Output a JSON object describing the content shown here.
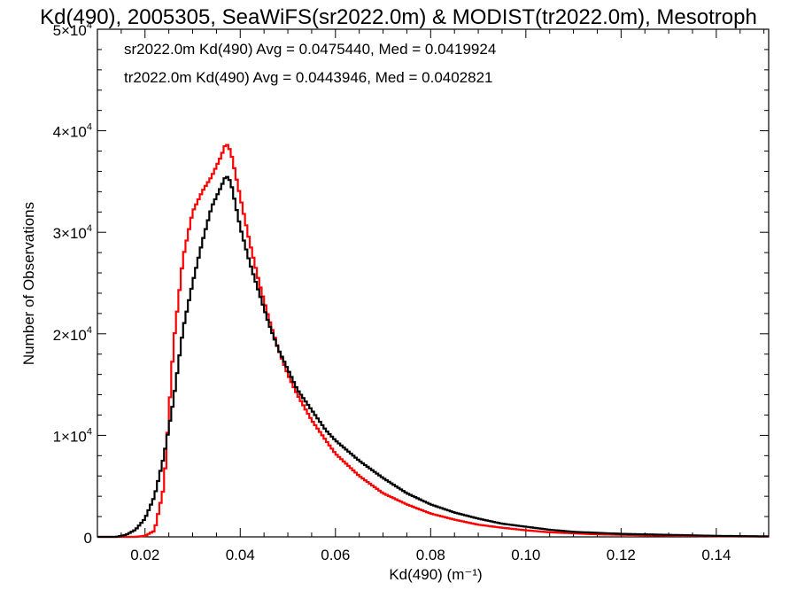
{
  "chart_data": {
    "type": "step-histogram",
    "title": "Kd(490), 2005305, SeaWiFS(sr2022.0m) & MODIST(tr2022.0m), Mesotroph",
    "xlabel": "Kd(490) (m⁻¹)",
    "ylabel": "Number of Observations",
    "xlim": [
      0.01,
      0.151
    ],
    "ylim": [
      0,
      50000
    ],
    "x_ticks": [
      0.02,
      0.04,
      0.06,
      0.08,
      0.1,
      0.12,
      0.14
    ],
    "x_tick_labels": [
      "0.02",
      "0.04",
      "0.06",
      "0.08",
      "0.10",
      "0.12",
      "0.14"
    ],
    "y_ticks": [
      {
        "value": 0,
        "mantissa": "0",
        "exp": ""
      },
      {
        "value": 10000,
        "mantissa": "1×10",
        "exp": "4"
      },
      {
        "value": 20000,
        "mantissa": "2×10",
        "exp": "4"
      },
      {
        "value": 30000,
        "mantissa": "3×10",
        "exp": "4"
      },
      {
        "value": 40000,
        "mantissa": "4×10",
        "exp": "4"
      },
      {
        "value": 50000,
        "mantissa": "5×10",
        "exp": "4"
      }
    ],
    "grid": false,
    "legend_position": "top-left",
    "series": [
      {
        "name": "sr2022.0m",
        "label": "sr2022.0m Kd(490) Avg = 0.0475440, Med = 0.0419924",
        "color": "#000000",
        "x": [
          0.01,
          0.014,
          0.016,
          0.018,
          0.02,
          0.022,
          0.024,
          0.026,
          0.028,
          0.03,
          0.032,
          0.034,
          0.036,
          0.037,
          0.038,
          0.04,
          0.042,
          0.044,
          0.046,
          0.048,
          0.05,
          0.052,
          0.055,
          0.058,
          0.06,
          0.065,
          0.07,
          0.075,
          0.08,
          0.085,
          0.09,
          0.095,
          0.1,
          0.105,
          0.11,
          0.115,
          0.12,
          0.13,
          0.14,
          0.151
        ],
        "y": [
          0,
          0,
          200,
          700,
          1800,
          4000,
          8000,
          13500,
          20500,
          25000,
          29000,
          32500,
          34500,
          35600,
          35000,
          30500,
          27000,
          24000,
          21000,
          18500,
          16500,
          14500,
          12500,
          10500,
          9500,
          7500,
          5800,
          4300,
          3200,
          2400,
          1800,
          1300,
          1000,
          700,
          500,
          400,
          300,
          200,
          100,
          50
        ]
      },
      {
        "name": "tr2022.0m",
        "label": "tr2022.0m Kd(490) Avg = 0.0443946, Med = 0.0402821",
        "color": "#ff0000",
        "x": [
          0.01,
          0.018,
          0.02,
          0.022,
          0.024,
          0.025,
          0.026,
          0.028,
          0.03,
          0.032,
          0.034,
          0.036,
          0.037,
          0.038,
          0.04,
          0.042,
          0.044,
          0.046,
          0.048,
          0.05,
          0.052,
          0.055,
          0.058,
          0.06,
          0.065,
          0.07,
          0.075,
          0.08,
          0.085,
          0.09,
          0.095,
          0.1,
          0.105,
          0.11,
          0.115,
          0.12,
          0.13,
          0.14,
          0.151
        ],
        "y": [
          0,
          0,
          100,
          600,
          5000,
          12000,
          19000,
          27500,
          32000,
          34000,
          35500,
          37500,
          38800,
          38000,
          33500,
          29000,
          25000,
          21500,
          18500,
          16000,
          14000,
          11500,
          9500,
          8200,
          6000,
          4300,
          3200,
          2300,
          1700,
          1200,
          900,
          650,
          450,
          350,
          250,
          200,
          120,
          60,
          30
        ]
      }
    ]
  }
}
